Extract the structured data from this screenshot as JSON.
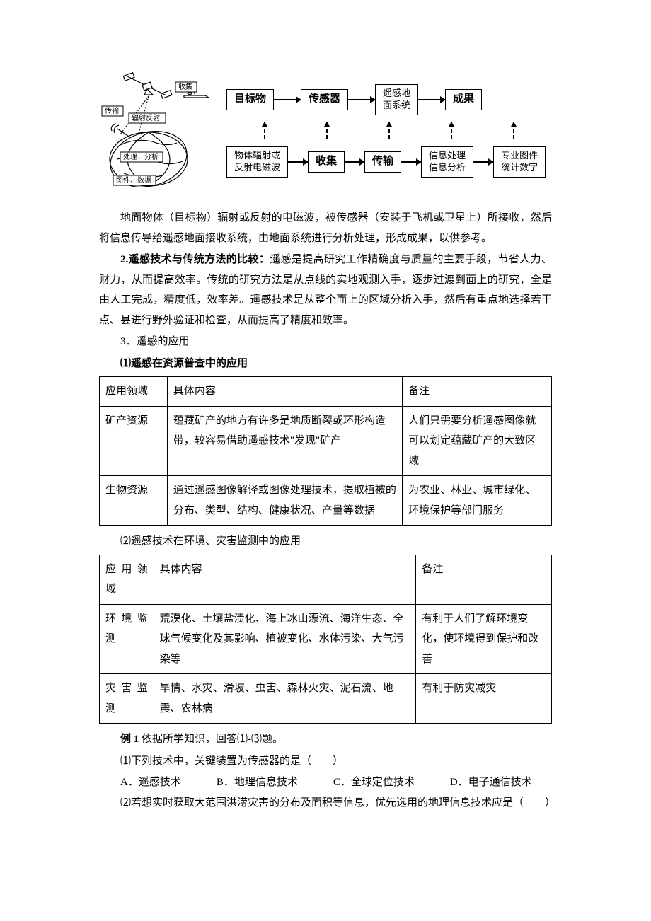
{
  "diagram": {
    "satellite_labels": {
      "collect": "收集",
      "transmit": "传输",
      "radiation_reflect": "辐射反射",
      "process_analyze": "处理、分析",
      "images_data": "图件、数据"
    },
    "flow_top": {
      "n1": "目标物",
      "n2": "传感器",
      "n3": "遥感地\n面系统",
      "n4": "成果"
    },
    "flow_bottom": {
      "n1": "物体辐射或\n反射电磁波",
      "n2": "收集",
      "n3": "传输",
      "n4": "信息处理\n信息分析",
      "n5": "专业图件\n统计数字"
    }
  },
  "para1": "地面物体（目标物）辐射或反射的电磁波，被传感器（安装于飞机或卫星上）所接收，然后将信息传导给遥感地面接收系统，由地面系统进行分析处理，形成成果，以供参考。",
  "para2_lead": "2.遥感技术与传统方法的比较：",
  "para2_body": "遥感是提高研究工作精确度与质量的主要手段，节省人力、财力，从而提高效率。传统的研究方法是从点线的实地观测入手，逐步过渡到面上的研究，全是由人工完成，精度低，效率差。遥感技术是从整个面上的区域分析入手，然后有重点地选择若干点、县进行野外验证和检查，从而提高了精度和效率。",
  "h3": "3．遥感的应用",
  "h3_1": "⑴遥感在资源普查中的应用",
  "table1": {
    "header": [
      "应用领域",
      "具体内容",
      "备注"
    ],
    "rows": [
      [
        "矿产资源",
        "蕴藏矿产的地方有许多是地质断裂或环形构造带，较容易借助遥感技术\"发现\"矿产",
        "人们只需要分析遥感图像就可以划定蕴藏矿产的大致区域"
      ],
      [
        "生物资源",
        "通过遥感图像解译或图像处理技术，提取植被的分布、类型、结构、健康状况、产量等数据",
        "为农业、林业、城市绿化、环境保护等部门服务"
      ]
    ]
  },
  "h3_2": "⑵遥感技术在环境、灾害监测中的应用",
  "table2": {
    "header": [
      "应用领域",
      "具体内容",
      "备注"
    ],
    "rows": [
      [
        "环境监测",
        "荒漠化、土壤盐渍化、海上冰山漂流、海洋生态、全球气候变化及其影响、植被变化、水体污染、大气污染等",
        "有利于人们了解环境变化，使环境得到保护和改善"
      ],
      [
        "灾害监测",
        "旱情、水灾、滑坡、虫害、森林火灾、泥石流、地震、农林病",
        "有利于防灾减灾"
      ]
    ]
  },
  "example": {
    "lead_bold": "例 1",
    "lead_rest": "  依据所学知识，回答⑴-⑶题。",
    "q1": "⑴下列技术中，关键装置为传感器的是（　　）",
    "q1_opts": {
      "A": "A．遥感技术",
      "B": "B．地理信息技术",
      "C": "C．全球定位技术",
      "D": "D．电子通信技术"
    },
    "q2": "⑵若想实时获取大范围洪涝灾害的分布及面积等信息，优先选用的地理信息技术应是（　　）"
  }
}
